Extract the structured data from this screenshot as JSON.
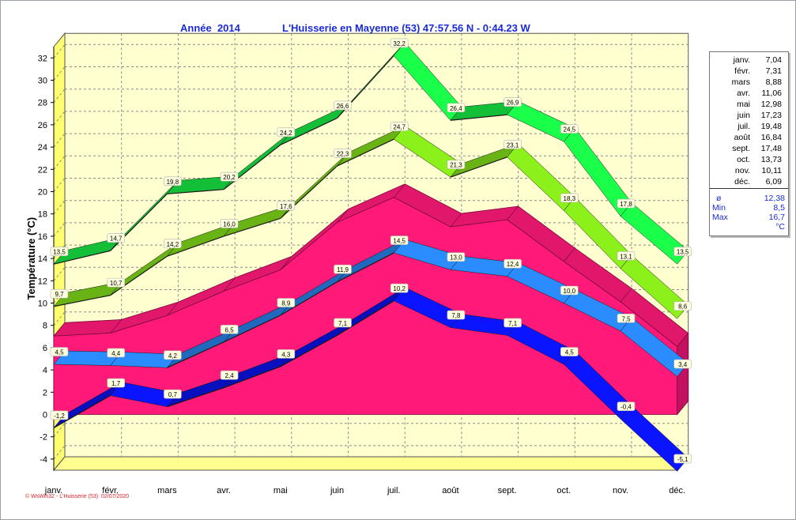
{
  "header": {
    "year_label": "Année  2014",
    "station": "L'Huisserie en Mayenne (53) 47:57.56 N - 0:44.23 W"
  },
  "legend": {
    "monthly": [
      {
        "m": "janv.",
        "v": "7,04"
      },
      {
        "m": "févr.",
        "v": "7,31"
      },
      {
        "m": "mars",
        "v": "8,88"
      },
      {
        "m": "avr.",
        "v": "11,06"
      },
      {
        "m": "mai",
        "v": "12,98"
      },
      {
        "m": "juin",
        "v": "17,23"
      },
      {
        "m": "juil.",
        "v": "19,48"
      },
      {
        "m": "août",
        "v": "16,84"
      },
      {
        "m": "sept.",
        "v": "17,48"
      },
      {
        "m": "oct.",
        "v": "13,73"
      },
      {
        "m": "nov.",
        "v": "10,11"
      },
      {
        "m": "déc.",
        "v": "6,09"
      }
    ],
    "avg_symbol": "ø",
    "avg_value": "12,38",
    "min_label": "Min",
    "min_value": "8,5",
    "max_label": "Max",
    "max_value": "16,7",
    "unit": "°C"
  },
  "credit": "© WsWin32 - L'Huisserie (53)  02/07/2020",
  "colors": {
    "background": "#ffffff",
    "wall": "#ffffd0",
    "floor": "#ffff90",
    "mean_area": "#ff1a7a",
    "mean_area_side": "#c41060",
    "abs_max": "#1aff4a",
    "mean_max": "#8cf01a",
    "mean_min": "#2a8cff",
    "abs_min": "#0b14ff",
    "title_text": "#1a2bd6"
  },
  "chart_data": {
    "type": "area",
    "ylabel": "Température  (°C)",
    "categories": [
      "janv.",
      "févr.",
      "mars",
      "avr.",
      "mai",
      "juin",
      "juil.",
      "août",
      "sept.",
      "oct.",
      "nov.",
      "déc."
    ],
    "ylim": [
      -5,
      33
    ],
    "y_ticks": [
      -4,
      -2,
      0,
      2,
      4,
      6,
      8,
      10,
      12,
      14,
      16,
      18,
      20,
      22,
      24,
      26,
      28,
      30,
      32
    ],
    "grid": true,
    "legend_position": "right",
    "series": [
      {
        "values": [
          13.5,
          14.7,
          19.8,
          20.2,
          24.2,
          26.6,
          32.2,
          26.4,
          26.9,
          24.5,
          17.8,
          13.5
        ],
        "labels": [
          "13,5",
          "14,7",
          "19,8",
          "20,2",
          "24,2",
          "26,6",
          "32,2",
          "26,4",
          "26,9",
          "24,5",
          "17,8",
          "13,5"
        ]
      },
      {
        "values": [
          9.7,
          10.7,
          14.2,
          16.0,
          17.6,
          22.3,
          24.7,
          21.3,
          23.1,
          18.3,
          13.1,
          8.6
        ],
        "labels": [
          "9,7",
          "10,7",
          "14,2",
          "16,0",
          "17,6",
          "22,3",
          "24,7",
          "21,3",
          "23,1",
          "18,3",
          "13,1",
          "8,6"
        ]
      },
      {
        "values": [
          7.04,
          7.31,
          8.88,
          11.06,
          12.98,
          17.23,
          19.48,
          16.84,
          17.48,
          13.73,
          10.11,
          6.09
        ]
      },
      {
        "values": [
          4.5,
          4.4,
          4.2,
          6.5,
          8.9,
          11.9,
          14.5,
          13.0,
          12.4,
          10.0,
          7.5,
          3.4
        ],
        "labels": [
          "4,5",
          "4,4",
          "4,2",
          "6,5",
          "8,9",
          "11,9",
          "14,5",
          "13,0",
          "12,4",
          "10,0",
          "7,5",
          "3,4"
        ]
      },
      {
        "values": [
          -1.2,
          1.7,
          0.7,
          2.4,
          4.3,
          7.1,
          10.2,
          7.8,
          7.1,
          4.5,
          -0.4,
          -5.1
        ],
        "labels": [
          "-1,2",
          "1,7",
          "0,7",
          "2,4",
          "4,3",
          "7,1",
          "10,2",
          "7,8",
          "7,1",
          "4,5",
          "-0,4",
          "-5,1"
        ]
      }
    ]
  }
}
